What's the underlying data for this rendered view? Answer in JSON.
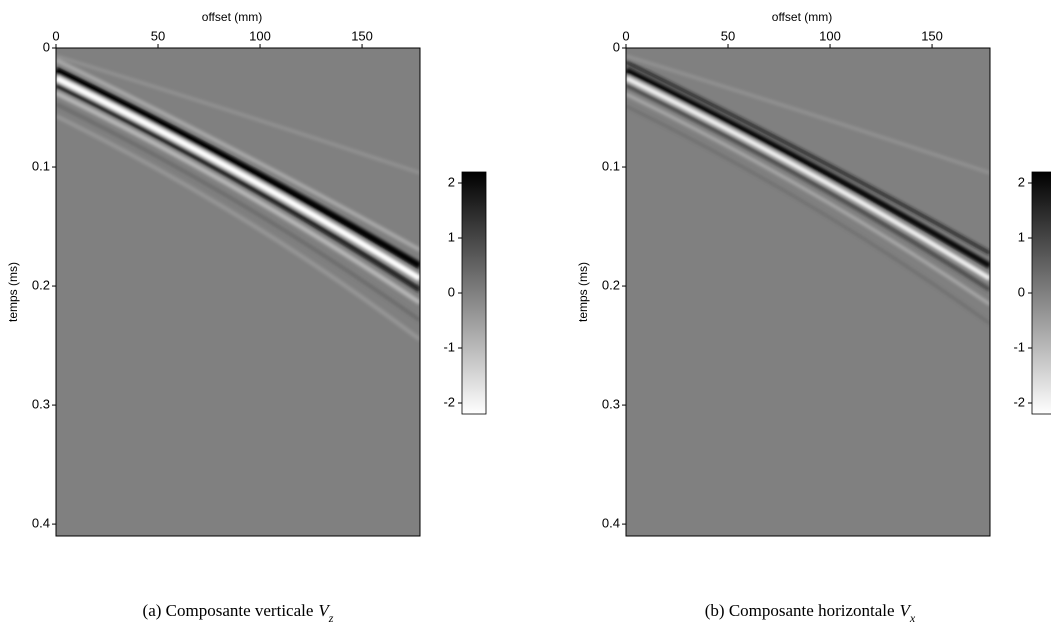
{
  "chart_data": [
    {
      "type": "image",
      "xlabel": "offset (mm)",
      "ylabel": "temps (ms)",
      "xlim": [
        0,
        178.4
      ],
      "xticks": [
        0,
        50,
        100,
        150
      ],
      "xaxis_position": "top",
      "ylim": [
        0,
        0.41
      ],
      "yticks": [
        0,
        0.1,
        0.2,
        0.3,
        0.4
      ],
      "yaxis_inverted": true,
      "background_color": "#808080",
      "colorbar": {
        "lim": [
          -2.2,
          2.2
        ],
        "ticks": [
          2,
          1,
          0,
          -1,
          -2
        ],
        "colors": [
          "#ffffff",
          "#808080",
          "#000000"
        ]
      },
      "caption": {
        "text": "(a) Composante verticale",
        "symbol": "V",
        "subscript": "z"
      }
    },
    {
      "type": "image",
      "xlabel": "offset (mm)",
      "ylabel": "temps (ms)",
      "xlim": [
        0,
        178.4
      ],
      "xticks": [
        0,
        50,
        100,
        150
      ],
      "xaxis_position": "top",
      "ylim": [
        0,
        0.41
      ],
      "yticks": [
        0,
        0.1,
        0.2,
        0.3,
        0.4
      ],
      "yaxis_inverted": true,
      "background_color": "#808080",
      "colorbar": {
        "lim": [
          -2.2,
          2.2
        ],
        "ticks": [
          2,
          1,
          0,
          -1,
          -2
        ],
        "colors": [
          "#ffffff",
          "#808080",
          "#000000"
        ]
      },
      "caption": {
        "text": "(b) Composante horizontale",
        "symbol": "V",
        "subscript": "x"
      }
    }
  ]
}
